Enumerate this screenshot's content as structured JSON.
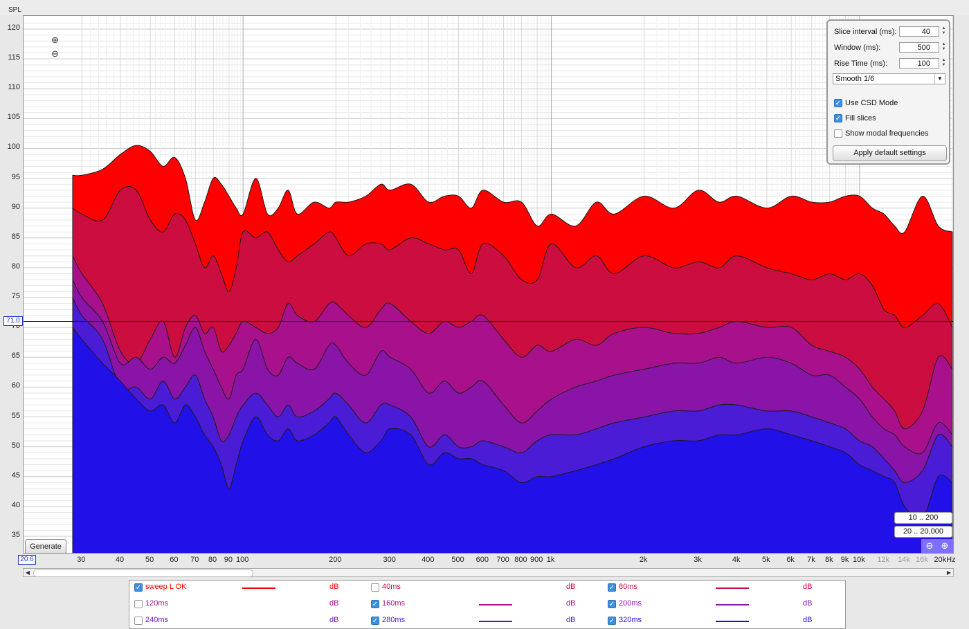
{
  "y_axis_title": "SPL",
  "cursor": {
    "y_value": "71.0",
    "x_value": "20.6"
  },
  "zoom": {
    "in": "⊕",
    "out": "⊖"
  },
  "generate_label": "Generate",
  "range_buttons": [
    "10 .. 200",
    "20 .. 20,000"
  ],
  "settings": {
    "slice_interval_label": "Slice interval (ms):",
    "slice_interval": "40",
    "window_label": "Window (ms):",
    "window": "500",
    "rise_time_label": "Rise Time (ms):",
    "rise_time": "100",
    "smoothing": "Smooth 1/6",
    "use_csd_label": "Use CSD Mode",
    "use_csd": true,
    "fill_slices_label": "Fill slices",
    "fill_slices": true,
    "show_modal_label": "Show modal frequencies",
    "show_modal": false,
    "apply_label": "Apply default settings"
  },
  "colors": {
    "s0": "#ff0000",
    "s1": "#cc0d40",
    "s2": "#a8108c",
    "s3": "#8a14a8",
    "s4": "#6a18bf",
    "s5": "#4a1cd5",
    "s6": "#2210e8"
  },
  "legend": [
    {
      "name": "sweep L OK",
      "checked": true,
      "color": "#ff0000",
      "unit": "dB"
    },
    {
      "name": "40ms",
      "checked": false,
      "color": "#cc0d40",
      "unit": "dB"
    },
    {
      "name": "80ms",
      "checked": true,
      "color": "#cc0d40",
      "unit": "dB"
    },
    {
      "name": "120ms",
      "checked": false,
      "color": "#a8108c",
      "unit": "dB"
    },
    {
      "name": "160ms",
      "checked": true,
      "color": "#a8108c",
      "unit": "dB"
    },
    {
      "name": "200ms",
      "checked": true,
      "color": "#8a14a8",
      "unit": "dB"
    },
    {
      "name": "240ms",
      "checked": false,
      "color": "#6a18bf",
      "unit": "dB"
    },
    {
      "name": "280ms",
      "checked": true,
      "color": "#4a1cd5",
      "unit": "dB"
    },
    {
      "name": "320ms",
      "checked": true,
      "color": "#2210e8",
      "unit": "dB"
    }
  ],
  "chart_data": {
    "type": "area",
    "ylabel": "SPL",
    "y_ticks": [
      120,
      115,
      110,
      105,
      100,
      95,
      90,
      85,
      80,
      75,
      70,
      65,
      60,
      55,
      50,
      45,
      40,
      35
    ],
    "ylim": [
      31.5,
      122
    ],
    "x_scale": "log",
    "xlim": [
      20.6,
      20000
    ],
    "x_ticks": [
      {
        "v": 30,
        "label": "30"
      },
      {
        "v": 40,
        "label": "40"
      },
      {
        "v": 50,
        "label": "50"
      },
      {
        "v": 60,
        "label": "60"
      },
      {
        "v": 70,
        "label": "70"
      },
      {
        "v": 80,
        "label": "80"
      },
      {
        "v": 90,
        "label": "90"
      },
      {
        "v": 100,
        "label": "100"
      },
      {
        "v": 200,
        "label": "200"
      },
      {
        "v": 300,
        "label": "300"
      },
      {
        "v": 400,
        "label": "400"
      },
      {
        "v": 500,
        "label": "500"
      },
      {
        "v": 600,
        "label": "600"
      },
      {
        "v": 700,
        "label": "700"
      },
      {
        "v": 800,
        "label": "800"
      },
      {
        "v": 900,
        "label": "900"
      },
      {
        "v": 1000,
        "label": "1k"
      },
      {
        "v": 2000,
        "label": "2k"
      },
      {
        "v": 3000,
        "label": "3k"
      },
      {
        "v": 4000,
        "label": "4k"
      },
      {
        "v": 5000,
        "label": "5k"
      },
      {
        "v": 6000,
        "label": "6k"
      },
      {
        "v": 7000,
        "label": "7k"
      },
      {
        "v": 8000,
        "label": "8k"
      },
      {
        "v": 9000,
        "label": "9k"
      },
      {
        "v": 10000,
        "label": "10k"
      },
      {
        "v": 12000,
        "label": "12k",
        "grey": true
      },
      {
        "v": 14000,
        "label": "14k",
        "grey": true
      },
      {
        "v": 16000,
        "label": "16k",
        "grey": true
      },
      {
        "v": 20000,
        "label": "20kHz"
      }
    ],
    "cursor_level": 71.0,
    "x": [
      28,
      30,
      35,
      40,
      45,
      50,
      55,
      60,
      65,
      70,
      75,
      80,
      85,
      90,
      95,
      100,
      110,
      120,
      130,
      140,
      150,
      170,
      190,
      200,
      220,
      250,
      280,
      300,
      350,
      400,
      450,
      500,
      550,
      600,
      700,
      800,
      900,
      1000,
      1200,
      1400,
      1600,
      2000,
      2500,
      3000,
      3500,
      4000,
      5000,
      6000,
      7000,
      8000,
      9000,
      10000,
      11000,
      12000,
      13000,
      14000,
      16000,
      18000,
      20000
    ],
    "series": [
      {
        "name": "sweep L OK",
        "color": "#ff0000",
        "values": [
          95.5,
          95.5,
          96.5,
          99,
          100.5,
          99.5,
          97,
          98.5,
          95,
          88,
          91,
          95,
          94,
          92,
          90,
          89,
          95,
          89,
          90,
          93,
          89,
          91,
          90,
          91,
          91,
          92,
          94,
          93,
          94,
          91,
          92,
          92,
          90,
          93,
          91,
          91,
          87,
          89,
          87,
          91,
          89,
          92,
          90,
          93,
          91,
          92,
          90,
          92,
          91,
          91,
          92,
          92,
          90,
          89,
          87,
          86,
          92,
          87,
          86
        ]
      },
      {
        "name": "80ms",
        "color": "#cc0d40",
        "values": [
          90,
          89,
          88,
          93,
          93,
          88,
          86,
          89,
          88,
          84,
          80,
          82,
          79,
          76,
          80,
          86,
          85,
          86,
          83,
          81,
          82,
          84,
          86,
          85,
          82,
          84,
          84,
          83,
          85,
          84,
          83,
          83,
          79,
          84,
          82,
          78,
          78,
          84,
          80,
          82,
          79,
          82,
          80,
          81,
          80,
          82,
          80,
          79,
          78,
          79,
          78,
          79,
          77,
          73,
          72,
          70,
          72,
          74,
          70
        ]
      },
      {
        "name": "160ms",
        "color": "#a8108c",
        "values": [
          82,
          79,
          74,
          66,
          64,
          68,
          71,
          65,
          70,
          72,
          69,
          70,
          66,
          67,
          69,
          71,
          70,
          69,
          70,
          74,
          72,
          71,
          74,
          74,
          72,
          70,
          73,
          74,
          71,
          69,
          71,
          70,
          71,
          72,
          68,
          65,
          67,
          66,
          68,
          67,
          69,
          70,
          69,
          69,
          70,
          71,
          70,
          70,
          67,
          66,
          65,
          63,
          60,
          58,
          56,
          53,
          56,
          65,
          63
        ]
      },
      {
        "name": "200ms",
        "color": "#8a14a8",
        "values": [
          78,
          75,
          71,
          64,
          65,
          63,
          65,
          64,
          67,
          70,
          66,
          63,
          60,
          58,
          62,
          63,
          68,
          63,
          62,
          65,
          64,
          63,
          67,
          67,
          64,
          62,
          66,
          65,
          63,
          59,
          61,
          59,
          60,
          61,
          57,
          54,
          56,
          58,
          60,
          61,
          62,
          63,
          64,
          64,
          65,
          64,
          65,
          64,
          62,
          62,
          60,
          58,
          55,
          53,
          52,
          50,
          49,
          54,
          52
        ]
      },
      {
        "name": "280ms",
        "color": "#4a1cd5",
        "values": [
          75,
          72,
          68,
          60,
          60,
          58,
          61,
          58,
          60,
          62,
          58,
          55,
          51,
          52,
          55,
          57,
          59,
          57,
          55,
          57,
          55,
          56,
          58,
          59,
          57,
          54,
          57,
          57,
          55,
          50,
          52,
          50,
          50,
          51,
          50,
          49,
          51,
          52,
          52,
          53,
          54,
          55,
          56,
          56,
          57,
          57,
          56,
          56,
          55,
          54,
          53,
          51,
          50,
          48,
          46,
          44,
          46,
          52,
          50
        ]
      },
      {
        "name": "320ms",
        "color": "#2210e8",
        "values": [
          70,
          68,
          64,
          61,
          58,
          56,
          57,
          54,
          57,
          55,
          52,
          50,
          47,
          43,
          47,
          51,
          55,
          52,
          51,
          53,
          51,
          52,
          54,
          55,
          52,
          49,
          51,
          53,
          52,
          47,
          49,
          48,
          48,
          47,
          46,
          44,
          45,
          45,
          46,
          47,
          48,
          50,
          51,
          51,
          52,
          52,
          53,
          52,
          51,
          50,
          49,
          47,
          46,
          45,
          44,
          40,
          38,
          45,
          44
        ]
      }
    ]
  }
}
